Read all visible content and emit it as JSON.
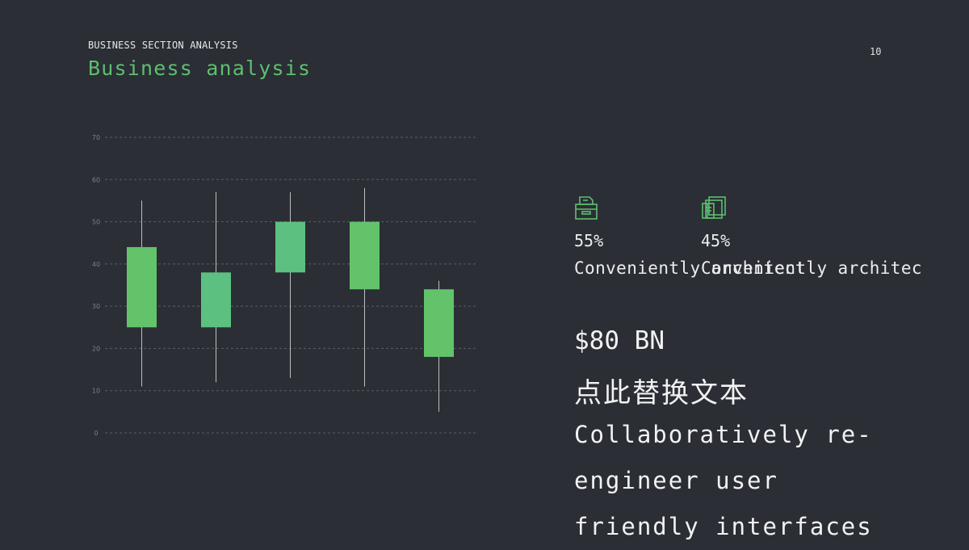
{
  "header": {
    "eyebrow": "BUSINESS SECTION ANALYSIS",
    "title": "Business analysis",
    "page_number": "10"
  },
  "stats": [
    {
      "icon": "archive-box-icon",
      "percent": "55%",
      "label": "Conveniently architect"
    },
    {
      "icon": "stacked-documents-icon",
      "percent": "45%",
      "label": "Conveniently architec"
    }
  ],
  "highlight": {
    "value": "$80 BN",
    "placeholder_cn": "点此替换文本",
    "body": "Collaboratively re-engineer user friendly interfaces"
  },
  "colors": {
    "background": "#2b2e35",
    "accent": "#5dbf6f",
    "candle_fill": [
      "#63c36b",
      "#5cc180",
      "#5cc180",
      "#63c36b",
      "#63c36b"
    ],
    "wick": "#bfbfbf",
    "grid": "#5a5d63"
  },
  "chart_data": {
    "type": "candlestick",
    "title": "",
    "xlabel": "",
    "ylabel": "",
    "ylim": [
      0,
      70
    ],
    "y_ticks": [
      0,
      10,
      20,
      30,
      40,
      50,
      60,
      70
    ],
    "grid": true,
    "candles": [
      {
        "high": 55,
        "low": 11,
        "box_low": 25,
        "box_high": 44
      },
      {
        "high": 57,
        "low": 12,
        "box_low": 25,
        "box_high": 38
      },
      {
        "high": 57,
        "low": 13,
        "box_low": 38,
        "box_high": 50
      },
      {
        "high": 58,
        "low": 11,
        "box_low": 34,
        "box_high": 50
      },
      {
        "high": 36,
        "low": 5,
        "box_low": 18,
        "box_high": 34
      }
    ]
  }
}
